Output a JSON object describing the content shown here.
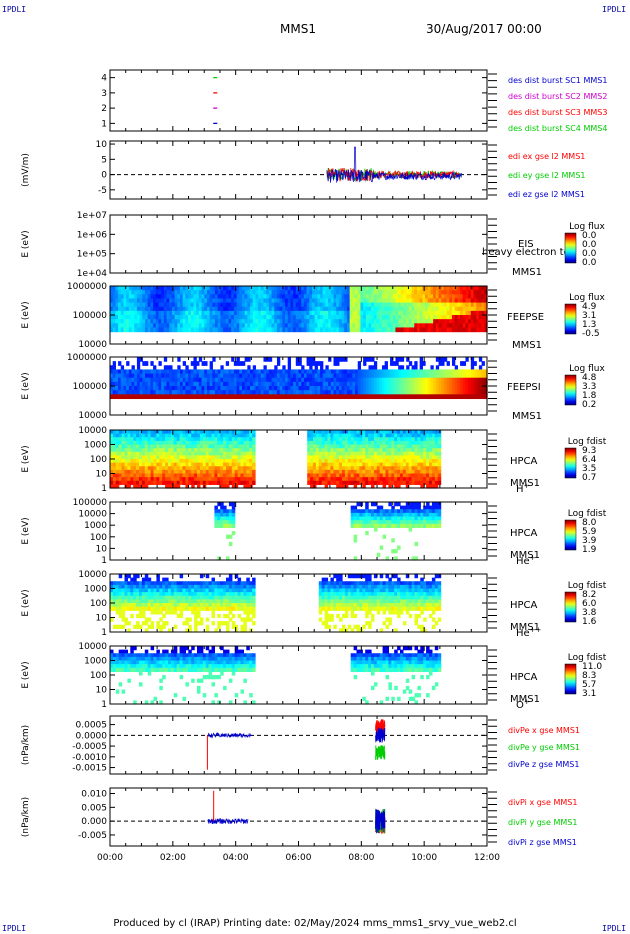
{
  "header": {
    "corner_label": "IPDLI",
    "mission": "MMS1",
    "datetime": "30/Aug/2017 00:00"
  },
  "footer": {
    "text": "Produced by cl (IRAP)   Printing date: 02/May/2024   mms_mms1_srvy_vue_web2.cl"
  },
  "colors": {
    "red": "#ff0000",
    "green": "#00cc00",
    "blue": "#0000cc",
    "magenta": "#cc00cc"
  },
  "chart_data": {
    "type": "multi-panel time series and spectrograms",
    "x_axis": {
      "range": [
        "00:00",
        "12:00"
      ],
      "ticks": [
        "00:00",
        "02:00",
        "04:00",
        "06:00",
        "08:00",
        "10:00",
        "12:00"
      ]
    },
    "panels": [
      {
        "id": "burst",
        "type": "scatter",
        "yticks": [
          "1",
          "2",
          "3",
          "4"
        ],
        "legend": [
          {
            "label": "des dist burst SC1 MMS1",
            "color": "#0000cc"
          },
          {
            "label": "des dist burst SC2 MMS2",
            "color": "#cc00cc"
          },
          {
            "label": "des dist burst SC3 MMS3",
            "color": "#ff0000"
          },
          {
            "label": "des dist burst SC4 MMS4",
            "color": "#00cc00"
          }
        ],
        "points": [
          {
            "t": 3.35,
            "y": 1,
            "color": "#0000cc"
          },
          {
            "t": 3.35,
            "y": 2,
            "color": "#cc00cc"
          },
          {
            "t": 3.35,
            "y": 3,
            "color": "#ff0000"
          },
          {
            "t": 3.35,
            "y": 4,
            "color": "#00cc00"
          }
        ]
      },
      {
        "id": "edi",
        "type": "line",
        "ylabel": "(mV/m)",
        "yticks": [
          "-5",
          "0",
          "5",
          "10"
        ],
        "ylim": [
          -8,
          11
        ],
        "legend": [
          {
            "label": "edi ex gse l2 MMS1",
            "color": "#ff0000"
          },
          {
            "label": "edi ey gse l2 MMS1",
            "color": "#00cc00"
          },
          {
            "label": "edi ez gse l2 MMS1",
            "color": "#0000cc"
          }
        ],
        "data_range_hours": [
          6.9,
          11.2
        ],
        "spike_hour": 7.8,
        "spike_value": 9
      },
      {
        "id": "eis",
        "type": "spectrogram",
        "ylabel": "E (eV)",
        "yticks": [
          "1e+04",
          "1e+05",
          "1e+06",
          "1e+07"
        ],
        "label_lines": [
          "EIS",
          "heavy electron to",
          "MMS1"
        ],
        "colorbar_title": "Log flux",
        "colorbar_values": [
          "0.0",
          "0.0",
          "0.0",
          "0.0"
        ]
      },
      {
        "id": "feepse",
        "type": "spectrogram",
        "ylabel": "E (eV)",
        "yticks": [
          "10000",
          "100000",
          "1000000"
        ],
        "label_lines": [
          "FEEPSE",
          "MMS1"
        ],
        "colorbar_title": "Log flux",
        "colorbar_values": [
          "4.9",
          "3.1",
          "1.3",
          "-0.5"
        ]
      },
      {
        "id": "feepsi",
        "type": "spectrogram",
        "ylabel": "E (eV)",
        "yticks": [
          "10000",
          "100000",
          "1000000"
        ],
        "label_lines": [
          "FEEPSI",
          "MMS1"
        ],
        "colorbar_title": "Log flux",
        "colorbar_values": [
          "4.8",
          "3.3",
          "1.8",
          "0.2"
        ]
      },
      {
        "id": "hpca_h",
        "type": "spectrogram",
        "ylabel": "E (eV)",
        "yticks": [
          "1",
          "10",
          "100",
          "1000",
          "10000"
        ],
        "label_lines": [
          "HPCA",
          "MMS1"
        ],
        "species": "H",
        "species_sup": "+",
        "colorbar_title": "Log fdist",
        "colorbar_values": [
          "9.3",
          "6.4",
          "3.5",
          "0.7"
        ]
      },
      {
        "id": "hpca_he",
        "type": "spectrogram",
        "ylabel": "E (eV)",
        "yticks": [
          "1",
          "10",
          "100",
          "1000",
          "10000",
          "100000"
        ],
        "label_lines": [
          "HPCA",
          "MMS1"
        ],
        "species": "He",
        "species_sup": "+",
        "colorbar_title": "Log fdist",
        "colorbar_values": [
          "8.0",
          "5.9",
          "3.9",
          "1.9"
        ]
      },
      {
        "id": "hpca_hepp",
        "type": "spectrogram",
        "ylabel": "E (eV)",
        "yticks": [
          "1",
          "10",
          "100",
          "1000",
          "10000"
        ],
        "label_lines": [
          "HPCA",
          "MMS1"
        ],
        "species": "He",
        "species_sup": "++",
        "colorbar_title": "Log fdist",
        "colorbar_values": [
          "8.2",
          "6.0",
          "3.8",
          "1.6"
        ]
      },
      {
        "id": "hpca_o",
        "type": "spectrogram",
        "ylabel": "E (eV)",
        "yticks": [
          "1",
          "10",
          "100",
          "1000",
          "10000"
        ],
        "label_lines": [
          "HPCA",
          "MMS1"
        ],
        "species": "O",
        "species_sup": "+",
        "colorbar_title": "Log fdist",
        "colorbar_values": [
          "11.0",
          "8.3",
          "5.7",
          "3.1"
        ]
      },
      {
        "id": "divpe",
        "type": "line",
        "ylabel": "(nPa/km)",
        "yticks": [
          "-0.0015",
          "-0.0010",
          "-0.0005",
          "0.0000",
          "0.0005"
        ],
        "ylim": [
          -0.0018,
          0.0009
        ],
        "legend": [
          {
            "label": "divPe x gse MMS1",
            "color": "#ff0000"
          },
          {
            "label": "divPe y gse MMS1",
            "color": "#00cc00"
          },
          {
            "label": "divPe z gse MMS1",
            "color": "#0000cc"
          }
        ]
      },
      {
        "id": "divpi",
        "type": "line",
        "ylabel": "(nPa/km)",
        "yticks": [
          "-0.005",
          "0.000",
          "0.005",
          "0.010"
        ],
        "ylim": [
          -0.009,
          0.012
        ],
        "legend": [
          {
            "label": "divPi x gse MMS1",
            "color": "#ff0000"
          },
          {
            "label": "divPi y gse MMS1",
            "color": "#00cc00"
          },
          {
            "label": "divPi z gse MMS1",
            "color": "#0000cc"
          }
        ]
      }
    ]
  }
}
